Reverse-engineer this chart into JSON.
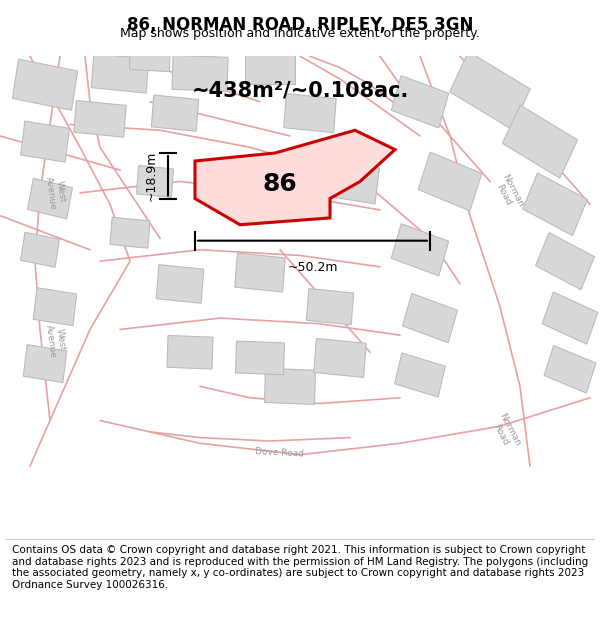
{
  "title": "86, NORMAN ROAD, RIPLEY, DE5 3GN",
  "subtitle": "Map shows position and indicative extent of the property.",
  "footer": "Contains OS data © Crown copyright and database right 2021. This information is subject to Crown copyright and database rights 2023 and is reproduced with the permission of HM Land Registry. The polygons (including the associated geometry, namely x, y co-ordinates) are subject to Crown copyright and database rights 2023 Ordnance Survey 100026316.",
  "area_label": "~438m²/~0.108ac.",
  "property_number": "86",
  "dim_width": "~50.2m",
  "dim_height": "~18.9m",
  "bg_color": "#f5f5f5",
  "map_bg": "#ffffff",
  "road_color": "#e8a0a0",
  "building_color": "#d8d8d8",
  "building_edge": "#bbbbbb",
  "highlight_color": "#cc0000",
  "highlight_fill": "#ffcccc",
  "road_label_color": "#aaaaaa",
  "title_fontsize": 12,
  "subtitle_fontsize": 9,
  "footer_fontsize": 7.5
}
